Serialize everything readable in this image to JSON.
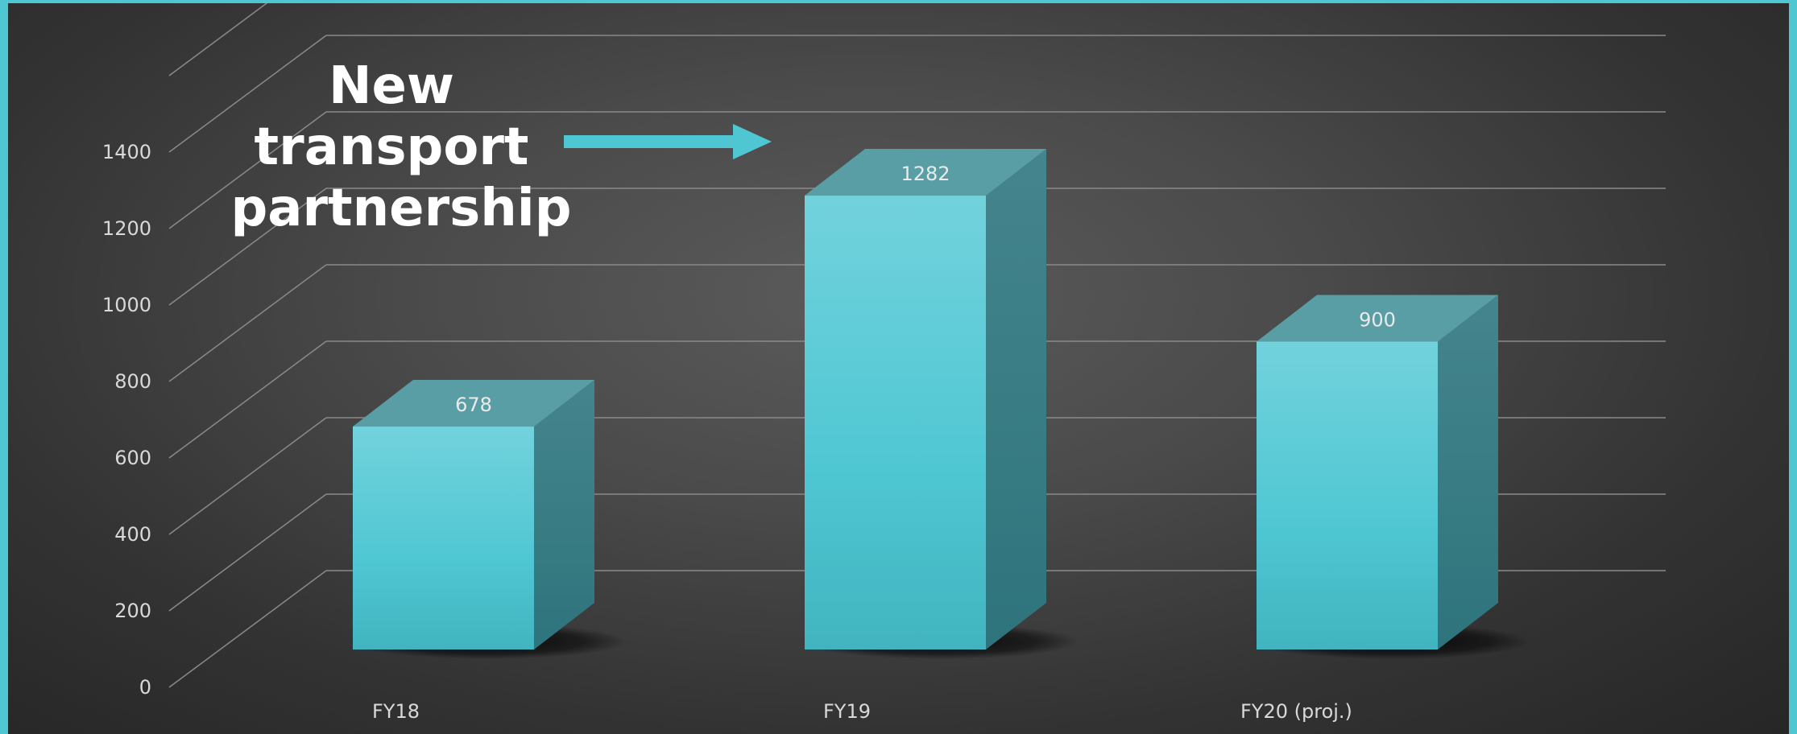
{
  "chart_data": {
    "type": "bar",
    "style": "3d-column",
    "categories": [
      "FY18",
      "FY19",
      "FY20 (proj.)"
    ],
    "values": [
      678,
      1282,
      900
    ],
    "data_labels": [
      "678",
      "1282",
      "900"
    ],
    "y_ticks": [
      0,
      200,
      400,
      600,
      800,
      1000,
      1200,
      1400
    ],
    "ylim": [
      0,
      1600
    ],
    "grid": true,
    "legend": "none",
    "annotation": {
      "lines": [
        "New",
        "transport",
        "partnership"
      ],
      "points_to": "FY19"
    },
    "colors": {
      "bar_front": "#4fc7d3",
      "bar_top": "#5a9ea5",
      "bar_side": "#3a8189",
      "arrow": "#4fc7d3",
      "background": "#4a4a4a",
      "gridline": "#8a8a8a",
      "frame": "#4fc7d3"
    }
  }
}
